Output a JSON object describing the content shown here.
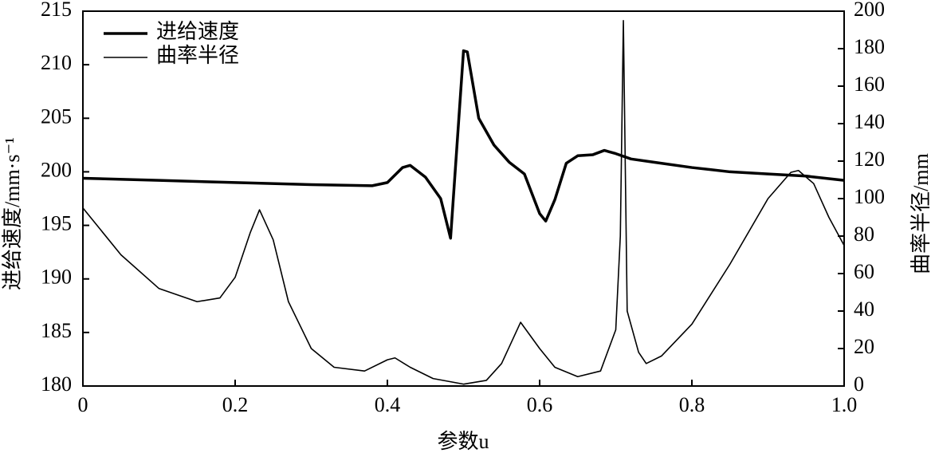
{
  "chart_data": {
    "type": "line",
    "x_label": "参数u",
    "y_label": "进给速度/mm·s⁻¹",
    "y2_label": "曲率半径/mm",
    "xlim": [
      0,
      1
    ],
    "xticks": [
      0,
      0.2,
      0.4,
      0.6,
      0.8,
      {
        "value": 1,
        "label": "1.0"
      }
    ],
    "ylim": [
      180,
      215
    ],
    "yticks": [
      180,
      185,
      190,
      195,
      200,
      205,
      210,
      215
    ],
    "y2lim": [
      0,
      200
    ],
    "y2ticks": [
      0,
      20,
      40,
      60,
      80,
      100,
      120,
      140,
      160,
      180,
      200
    ],
    "legend": "upper left",
    "series": [
      {
        "name": "进给速度",
        "color": "#000000",
        "width": "thick",
        "x": [
          0,
          0.1,
          0.2,
          0.3,
          0.38,
          0.4,
          0.42,
          0.43,
          0.45,
          0.47,
          0.483,
          0.5,
          0.505,
          0.52,
          0.54,
          0.56,
          0.58,
          0.6,
          0.608,
          0.62,
          0.635,
          0.65,
          0.67,
          0.685,
          0.7,
          0.72,
          0.75,
          0.8,
          0.85,
          0.9,
          0.95,
          1
        ],
        "values": [
          199.4,
          199.2,
          199.0,
          198.8,
          198.7,
          199.0,
          200.4,
          200.6,
          199.5,
          197.5,
          193.8,
          211.3,
          211.2,
          205.0,
          202.5,
          200.9,
          199.8,
          196.1,
          195.4,
          197.4,
          200.8,
          201.5,
          201.6,
          202.0,
          201.7,
          201.2,
          200.9,
          200.4,
          200.0,
          199.8,
          199.6,
          199.2
        ]
      },
      {
        "name": "曲率半径",
        "color": "#000000",
        "width": "thin",
        "axis": "y2",
        "x": [
          0,
          0.05,
          0.1,
          0.15,
          0.18,
          0.2,
          0.22,
          0.232,
          0.25,
          0.27,
          0.3,
          0.33,
          0.37,
          0.4,
          0.41,
          0.43,
          0.46,
          0.5,
          0.53,
          0.55,
          0.575,
          0.6,
          0.62,
          0.65,
          0.68,
          0.7,
          0.706,
          0.71,
          0.715,
          0.73,
          0.74,
          0.76,
          0.8,
          0.85,
          0.9,
          0.93,
          0.94,
          0.96,
          0.98,
          1
        ],
        "values": [
          95,
          70,
          52,
          45,
          47,
          58,
          82,
          94,
          78,
          45,
          20,
          10,
          8,
          14,
          15,
          10,
          4,
          1,
          3,
          12,
          34,
          20,
          10,
          5,
          8,
          30,
          80,
          195,
          40,
          18,
          12,
          16,
          33,
          65,
          100,
          114,
          115,
          108,
          90,
          75
        ]
      }
    ]
  }
}
